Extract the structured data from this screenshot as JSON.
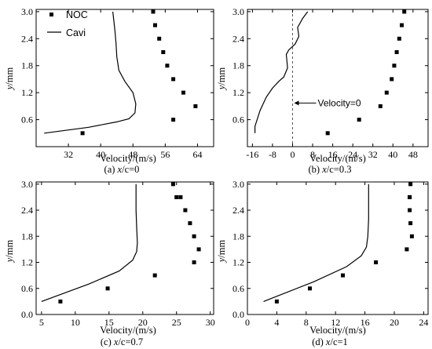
{
  "legend": {
    "noc_label": "NOC",
    "cavi_label": "Cavi"
  },
  "chart_data": [
    {
      "type": "scatter+line",
      "caption": "(a) x/c=0",
      "caption_prefix": "(a) ",
      "caption_var": "x",
      "caption_suffix": "/c=0",
      "xlabel": "Velocity/(m/s)",
      "ylabel": "y/mm",
      "xlim": [
        24,
        68
      ],
      "ylim": [
        0,
        3.05
      ],
      "xticks": [
        32,
        40,
        48,
        56,
        64
      ],
      "xtick_labels": [
        "32",
        "40",
        "48",
        "56",
        "64"
      ],
      "yticks": [
        0.6,
        1.2,
        1.8,
        2.4,
        3.0
      ],
      "ytick_labels": [
        "0.6",
        "1.2",
        "1.8",
        "2.4",
        "3.0"
      ],
      "series": [
        {
          "name": "NOC",
          "type": "scatter",
          "x": [
            35.5,
            58,
            63.5,
            60.5,
            58,
            56.5,
            55.5,
            54.5,
            53.5,
            53
          ],
          "y": [
            0.3,
            0.6,
            0.9,
            1.2,
            1.5,
            1.8,
            2.1,
            2.4,
            2.7,
            3.0
          ]
        },
        {
          "name": "Cavi",
          "type": "line",
          "x": [
            26,
            37,
            44,
            47,
            48.5,
            48.7,
            48,
            46,
            44.5,
            44,
            43.8,
            43.5,
            43.2,
            43
          ],
          "y": [
            0.3,
            0.43,
            0.55,
            0.62,
            0.75,
            0.95,
            1.2,
            1.45,
            1.7,
            2.0,
            2.3,
            2.6,
            2.85,
            3.0
          ]
        }
      ]
    },
    {
      "type": "scatter+line",
      "caption": "(b) x/c=0.3",
      "caption_prefix": "(b) ",
      "caption_var": "x",
      "caption_suffix": "/c=0.3",
      "xlabel": "Velocity/(m/s)",
      "ylabel": "y/mm",
      "xlim": [
        -18,
        54
      ],
      "ylim": [
        0,
        3.05
      ],
      "xticks": [
        -16,
        -8,
        0,
        8,
        16,
        24,
        32,
        40,
        48
      ],
      "xtick_labels": [
        "-16",
        "-8",
        "0",
        "8",
        "16",
        "24",
        "32",
        "40",
        "48"
      ],
      "yticks": [
        0.6,
        1.2,
        1.8,
        2.4,
        3.0
      ],
      "ytick_labels": [
        "0.6",
        "1.2",
        "1.8",
        "2.4",
        "3.0"
      ],
      "zero_line_x": 0,
      "annotation": {
        "text": "Velocity=0",
        "x": 0,
        "y": 0.97
      },
      "series": [
        {
          "name": "NOC",
          "type": "scatter",
          "x": [
            14,
            26.5,
            35,
            37.5,
            39.5,
            40.5,
            41.5,
            42.5,
            43.5,
            44.5
          ],
          "y": [
            0.3,
            0.6,
            0.9,
            1.2,
            1.5,
            1.8,
            2.1,
            2.4,
            2.7,
            3.0
          ]
        },
        {
          "name": "Cavi",
          "type": "line",
          "x": [
            -15,
            -15,
            -13,
            -10.5,
            -8,
            -5.5,
            -3.5,
            -2,
            -2.5,
            -1.5,
            1,
            2.5,
            2,
            4,
            6
          ],
          "y": [
            0.3,
            0.45,
            0.8,
            1.1,
            1.3,
            1.45,
            1.55,
            1.75,
            2.05,
            2.15,
            2.28,
            2.45,
            2.65,
            2.85,
            3.0
          ]
        }
      ]
    },
    {
      "type": "scatter+line",
      "caption": "(c) x/c=0.7",
      "caption_prefix": "(c) ",
      "caption_var": "x",
      "caption_suffix": "/c=0.7",
      "xlabel": "Velocity/(m/s)",
      "ylabel": "y/mm",
      "xlim": [
        4.2,
        30.5
      ],
      "ylim": [
        0,
        3.05
      ],
      "xticks": [
        5,
        10,
        15,
        20,
        25,
        30
      ],
      "xtick_labels": [
        "5",
        "10",
        "15",
        "20",
        "25",
        "30"
      ],
      "yticks": [
        0.0,
        0.6,
        1.2,
        1.8,
        2.4,
        3.0
      ],
      "ytick_labels": [
        "0.0",
        "0.6",
        "1.2",
        "1.8",
        "2.4",
        "3.0"
      ],
      "series": [
        {
          "name": "NOC",
          "type": "scatter",
          "x": [
            7.8,
            14.8,
            21.8,
            27.6,
            28.3,
            27.6,
            27,
            26.3,
            25.6,
            25,
            24.5
          ],
          "y": [
            0.3,
            0.6,
            0.9,
            1.2,
            1.5,
            1.8,
            2.1,
            2.4,
            2.7,
            2.7,
            3.0
          ]
        },
        {
          "name": "Cavi",
          "type": "line",
          "x": [
            5,
            12,
            16.5,
            18.5,
            19.1,
            19.2,
            19.1,
            19.0,
            19.0,
            19.0
          ],
          "y": [
            0.3,
            0.7,
            1.0,
            1.25,
            1.45,
            1.65,
            2.0,
            2.4,
            2.7,
            3.0
          ]
        }
      ]
    },
    {
      "type": "scatter+line",
      "caption": "(d) x/c=1",
      "caption_prefix": "(d) ",
      "caption_var": "x",
      "caption_suffix": "/c=1",
      "xlabel": "Velocity/(m/s)",
      "ylabel": "y/mm",
      "xlim": [
        0,
        24.6
      ],
      "ylim": [
        0,
        3.05
      ],
      "xticks": [
        0,
        4,
        8,
        12,
        16,
        20,
        24
      ],
      "xtick_labels": [
        "0",
        "4",
        "8",
        "12",
        "16",
        "20",
        "24"
      ],
      "yticks": [
        0.0,
        0.6,
        1.2,
        1.8,
        2.4,
        3.0
      ],
      "ytick_labels": [
        "0.0",
        "0.6",
        "1.2",
        "1.8",
        "2.4",
        "3.0"
      ],
      "series": [
        {
          "name": "NOC",
          "type": "scatter",
          "x": [
            4,
            8.5,
            13,
            17.5,
            21.7,
            22.4,
            22.2,
            22.1,
            22.1,
            22.1,
            22.2
          ],
          "y": [
            0.3,
            0.6,
            0.9,
            1.2,
            1.5,
            1.8,
            2.1,
            2.4,
            2.7,
            2.7,
            3.0
          ]
        },
        {
          "name": "Cavi",
          "type": "line",
          "x": [
            2.2,
            9,
            13.5,
            15.5,
            16.2,
            16.4,
            16.5,
            16.5,
            16.5
          ],
          "y": [
            0.3,
            0.75,
            1.1,
            1.35,
            1.55,
            1.8,
            2.2,
            2.6,
            3.0
          ]
        }
      ]
    }
  ]
}
